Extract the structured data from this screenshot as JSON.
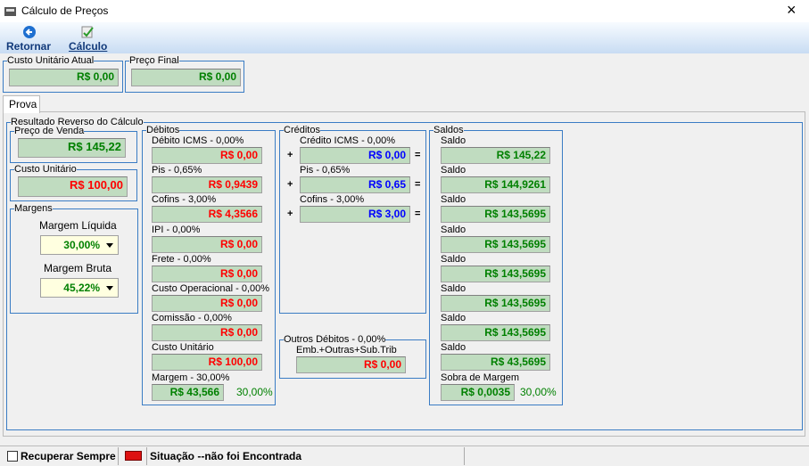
{
  "window": {
    "title": "Cálculo de Preços",
    "close": "×"
  },
  "toolbar": {
    "buttons": [
      "Retornar",
      "Cálculo"
    ]
  },
  "summary": [
    {
      "label": "Custo Unitário Atual",
      "value": "R$ 0,00"
    },
    {
      "label": "Preço Final",
      "value": "R$ 0,00"
    }
  ],
  "tabs": [
    "Prova"
  ],
  "result": {
    "title": "Resultado Reverso do Cálculo",
    "preco_venda": {
      "label": "Preço de Venda",
      "value": "R$ 145,22"
    },
    "custo_unitario": {
      "label": "Custo Unitário",
      "value": "R$ 100,00"
    },
    "margens": {
      "label": "Margens",
      "items": [
        {
          "label": "Margem Líquida",
          "value": "30,00%"
        },
        {
          "label": "Margem Bruta",
          "value": "45,22%"
        }
      ]
    },
    "debitos": {
      "label": "Débitos",
      "items": [
        {
          "label": "Débito ICMS - 0,00%",
          "value": "R$ 0,00"
        },
        {
          "label": "Pis - 0,65%",
          "value": "R$ 0,9439"
        },
        {
          "label": "Cofins - 3,00%",
          "value": "R$ 4,3566"
        },
        {
          "label": "IPI - 0,00%",
          "value": "R$ 0,00"
        },
        {
          "label": "Frete - 0,00%",
          "value": "R$ 0,00"
        },
        {
          "label": "Custo Operacional - 0,00%",
          "value": "R$ 0,00"
        },
        {
          "label": "Comissão - 0,00%",
          "value": "R$ 0,00"
        },
        {
          "label": "Custo Unitário",
          "value": "R$ 100,00"
        },
        {
          "label": "Margem - 30,00%",
          "value": "R$ 43,566"
        }
      ],
      "note": "30,00%"
    },
    "creditos": {
      "label": "Créditos",
      "items": [
        {
          "label": "Crédito ICMS - 0,00%",
          "value": "R$ 0,00"
        },
        {
          "label": "Pis - 0,65%",
          "value": "R$ 0,65"
        },
        {
          "label": "Cofins - 3,00%",
          "value": "R$ 3,00"
        }
      ],
      "plus": "+",
      "equals": "="
    },
    "outros_debitos": {
      "label": "Outros Débitos - 0,00%",
      "item": {
        "label": "Emb.+Outras+Sub.Trib",
        "value": "R$ 0,00"
      }
    },
    "saldos": {
      "label": "Saldos",
      "items": [
        {
          "label": "Saldo",
          "value": "R$ 145,22"
        },
        {
          "label": "Saldo",
          "value": "R$ 144,9261"
        },
        {
          "label": "Saldo",
          "value": "R$ 143,5695"
        },
        {
          "label": "Saldo",
          "value": "R$ 143,5695"
        },
        {
          "label": "Saldo",
          "value": "R$ 143,5695"
        },
        {
          "label": "Saldo",
          "value": "R$ 143,5695"
        },
        {
          "label": "Saldo",
          "value": "R$ 143,5695"
        },
        {
          "label": "Saldo",
          "value": "R$ 43,5695"
        },
        {
          "label": "Sobra de Margem",
          "value": "R$ 0,0035"
        }
      ],
      "note": "30,00%"
    }
  },
  "status": {
    "checkbox": "Recuperar Sempre",
    "message": "Situação --não foi Encontrada"
  }
}
